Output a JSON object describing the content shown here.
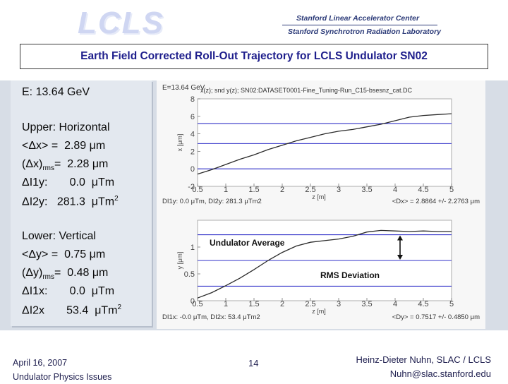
{
  "header": {
    "logo": "LCLS",
    "org_line1": "Stanford Linear Accelerator Center",
    "org_line2": "Stanford Synchrotron Radiation Laboratory"
  },
  "title": "Earth Field Corrected Roll-Out Trajectory for LCLS Undulator SN02",
  "left_text": {
    "energy": "E: 13.64 GeV",
    "upper_heading": "Upper: Horizontal",
    "upper_mean_label": "<Δx> =",
    "upper_mean_value": "2.89 μm",
    "upper_rms_label_a": "(Δx)",
    "upper_rms_label_sub": "rms",
    "upper_rms_label_b": "=",
    "upper_rms_value": "2.28 μm",
    "upper_i1_label": "ΔI1y:",
    "upper_i1_value": "0.0  μTm",
    "upper_i2_label": "ΔI2y:",
    "upper_i2_value": "281.3  μTm",
    "upper_i2_sup": "2",
    "lower_heading": "Lower: Vertical",
    "lower_mean_label": "<Δy> =",
    "lower_mean_value": "0.75 μm",
    "lower_rms_label_a": "(Δy)",
    "lower_rms_label_sub": "rms",
    "lower_rms_label_b": "=",
    "lower_rms_value": "0.48 μm",
    "lower_i1_label": "ΔI1x:",
    "lower_i1_value": "0.0  μTm",
    "lower_i2_label": "ΔI2x",
    "lower_i2_value": "53.4  μTm",
    "lower_i2_sup": "2"
  },
  "chart_data": [
    {
      "type": "line",
      "header_left": "E=13.64 GeV",
      "header_right": "x(z); snd y(z); SN02:DATASET0001-Fine_Tuning-Run_C15-bsesnz_cat.DC",
      "xlabel": "z [m]",
      "ylabel": "x [μm]",
      "xlim": [
        0.5,
        5
      ],
      "ylim": [
        -2,
        8
      ],
      "x_ticks": [
        "0.5",
        "1",
        "1.5",
        "2",
        "2.5",
        "3",
        "3.5",
        "4",
        "4.5",
        "5"
      ],
      "y_ticks": [
        "-2",
        "0",
        "2",
        "4",
        "6",
        "8"
      ],
      "hlines": [
        0.0,
        2.89,
        5.17
      ],
      "x": [
        0.5,
        0.75,
        1.0,
        1.25,
        1.5,
        1.75,
        2.0,
        2.25,
        2.5,
        2.75,
        3.0,
        3.25,
        3.5,
        3.75,
        4.0,
        4.25,
        4.5,
        4.75,
        5.0
      ],
      "values": [
        -0.6,
        -0.1,
        0.5,
        1.1,
        1.6,
        2.2,
        2.7,
        3.2,
        3.6,
        4.0,
        4.3,
        4.5,
        4.8,
        5.1,
        5.5,
        5.9,
        6.1,
        6.2,
        6.3
      ],
      "footer_left": "DI1y: 0.0 μTm, DI2y: 281.3 μTm2",
      "footer_right": "<Dx> = 2.8864 +/- 2.2763 μm"
    },
    {
      "type": "line",
      "xlabel": "z [m]",
      "ylabel": "y [μm]",
      "xlim": [
        0.5,
        5
      ],
      "ylim": [
        0,
        1.5
      ],
      "x_ticks": [
        "0.5",
        "1",
        "1.5",
        "2",
        "2.5",
        "3",
        "3.5",
        "4",
        "4.5",
        "5"
      ],
      "y_ticks": [
        "0",
        "0.5",
        "1"
      ],
      "hlines": [
        0.27,
        0.75,
        1.23
      ],
      "x": [
        0.5,
        0.75,
        1.0,
        1.25,
        1.5,
        1.75,
        2.0,
        2.25,
        2.5,
        2.75,
        3.0,
        3.25,
        3.5,
        3.75,
        4.0,
        4.25,
        4.5,
        4.75,
        5.0
      ],
      "values": [
        0.05,
        0.15,
        0.28,
        0.42,
        0.58,
        0.75,
        0.9,
        1.02,
        1.09,
        1.12,
        1.15,
        1.2,
        1.28,
        1.31,
        1.3,
        1.29,
        1.3,
        1.29,
        1.29
      ],
      "annotation_average": "Undulator Average",
      "annotation_rms": "RMS Deviation",
      "footer_left": "DI1x: -0.0 μTm, DI2x: 53.4 μTm2",
      "footer_right": "<Dy> = 0.7517 +/- 0.4850 μm"
    }
  ],
  "footer": {
    "date": "April 16, 2007",
    "event": "Undulator Physics Issues",
    "page": "14",
    "author": "Heinz-Dieter Nuhn, SLAC / LCLS",
    "email": "Nuhn@slac.stanford.edu"
  },
  "colors": {
    "title_text": "#1e1e8c",
    "curve": "#2a2a2a",
    "guide_lines": "#3030c8",
    "panel": "#d7dde6"
  }
}
